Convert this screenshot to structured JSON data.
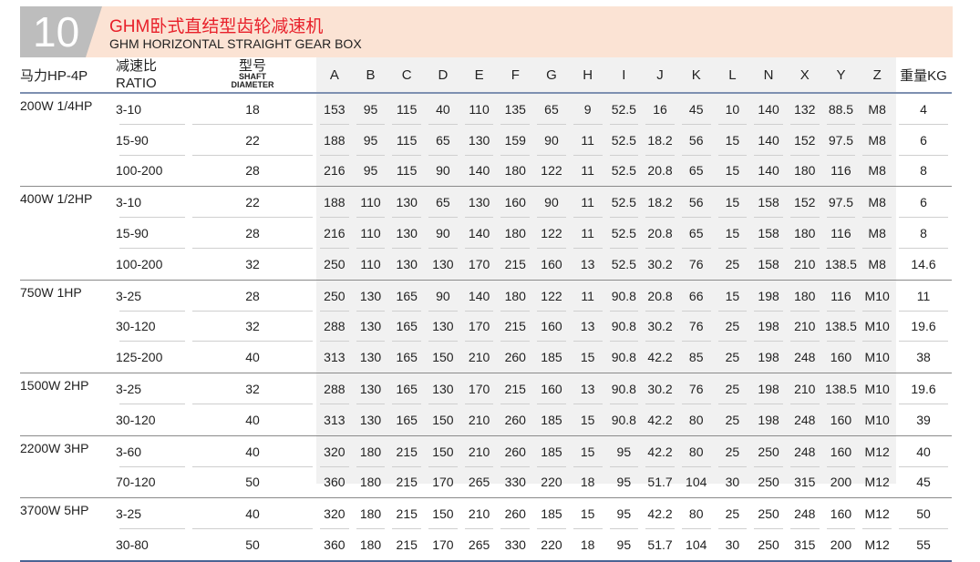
{
  "header": {
    "number": "10",
    "title_cn": "GHM卧式直结型齿轮减速机",
    "title_en": "GHM HORIZONTAL STRAIGHT GEAR BOX"
  },
  "columns": {
    "hp": "马力HP-4P",
    "ratio_cn": "减速比",
    "ratio_en": "RATIO",
    "model_cn": "型号",
    "shaft1": "SHAFT",
    "shaft2": "DIAMETER",
    "dims": [
      "A",
      "B",
      "C",
      "D",
      "E",
      "F",
      "G",
      "H",
      "I",
      "J",
      "K",
      "L",
      "N",
      "X",
      "Y",
      "Z"
    ],
    "weight": "重量KG"
  },
  "groups": [
    {
      "hp": "200W 1/4HP",
      "rows": [
        {
          "ratio": "3-10",
          "shaft": "18",
          "dims": [
            "153",
            "95",
            "115",
            "40",
            "110",
            "135",
            "65",
            "9",
            "52.5",
            "16",
            "45",
            "10",
            "140",
            "132",
            "88.5",
            "M8"
          ],
          "kg": "4"
        },
        {
          "ratio": "15-90",
          "shaft": "22",
          "dims": [
            "188",
            "95",
            "115",
            "65",
            "130",
            "159",
            "90",
            "11",
            "52.5",
            "18.2",
            "56",
            "15",
            "140",
            "152",
            "97.5",
            "M8"
          ],
          "kg": "6"
        },
        {
          "ratio": "100-200",
          "shaft": "28",
          "dims": [
            "216",
            "95",
            "115",
            "90",
            "140",
            "180",
            "122",
            "11",
            "52.5",
            "20.8",
            "65",
            "15",
            "140",
            "180",
            "116",
            "M8"
          ],
          "kg": "8"
        }
      ]
    },
    {
      "hp": "400W 1/2HP",
      "rows": [
        {
          "ratio": "3-10",
          "shaft": "22",
          "dims": [
            "188",
            "110",
            "130",
            "65",
            "130",
            "160",
            "90",
            "11",
            "52.5",
            "18.2",
            "56",
            "15",
            "158",
            "152",
            "97.5",
            "M8"
          ],
          "kg": "6"
        },
        {
          "ratio": "15-90",
          "shaft": "28",
          "dims": [
            "216",
            "110",
            "130",
            "90",
            "140",
            "180",
            "122",
            "11",
            "52.5",
            "20.8",
            "65",
            "15",
            "158",
            "180",
            "116",
            "M8"
          ],
          "kg": "8"
        },
        {
          "ratio": "100-200",
          "shaft": "32",
          "dims": [
            "250",
            "110",
            "130",
            "130",
            "170",
            "215",
            "160",
            "13",
            "52.5",
            "30.2",
            "76",
            "25",
            "158",
            "210",
            "138.5",
            "M8"
          ],
          "kg": "14.6"
        }
      ]
    },
    {
      "hp": "750W 1HP",
      "rows": [
        {
          "ratio": "3-25",
          "shaft": "28",
          "dims": [
            "250",
            "130",
            "165",
            "90",
            "140",
            "180",
            "122",
            "11",
            "90.8",
            "20.8",
            "66",
            "15",
            "198",
            "180",
            "116",
            "M10"
          ],
          "kg": "11"
        },
        {
          "ratio": "30-120",
          "shaft": "32",
          "dims": [
            "288",
            "130",
            "165",
            "130",
            "170",
            "215",
            "160",
            "13",
            "90.8",
            "30.2",
            "76",
            "25",
            "198",
            "210",
            "138.5",
            "M10"
          ],
          "kg": "19.6"
        },
        {
          "ratio": "125-200",
          "shaft": "40",
          "dims": [
            "313",
            "130",
            "165",
            "150",
            "210",
            "260",
            "185",
            "15",
            "90.8",
            "42.2",
            "85",
            "25",
            "198",
            "248",
            "160",
            "M10"
          ],
          "kg": "38"
        }
      ]
    },
    {
      "hp": "1500W 2HP",
      "rows": [
        {
          "ratio": "3-25",
          "shaft": "32",
          "dims": [
            "288",
            "130",
            "165",
            "130",
            "170",
            "215",
            "160",
            "13",
            "90.8",
            "30.2",
            "76",
            "25",
            "198",
            "210",
            "138.5",
            "M10"
          ],
          "kg": "19.6"
        },
        {
          "ratio": "30-120",
          "shaft": "40",
          "dims": [
            "313",
            "130",
            "165",
            "150",
            "210",
            "260",
            "185",
            "15",
            "90.8",
            "42.2",
            "80",
            "25",
            "198",
            "248",
            "160",
            "M10"
          ],
          "kg": "39"
        }
      ]
    },
    {
      "hp": "2200W 3HP",
      "rows": [
        {
          "ratio": "3-60",
          "shaft": "40",
          "dims": [
            "320",
            "180",
            "215",
            "150",
            "210",
            "260",
            "185",
            "15",
            "95",
            "42.2",
            "80",
            "25",
            "250",
            "248",
            "160",
            "M12"
          ],
          "kg": "40"
        },
        {
          "ratio": "70-120",
          "shaft": "50",
          "dims": [
            "360",
            "180",
            "215",
            "170",
            "265",
            "330",
            "220",
            "18",
            "95",
            "51.7",
            "104",
            "30",
            "250",
            "315",
            "200",
            "M12"
          ],
          "kg": "45"
        }
      ]
    },
    {
      "hp": "3700W 5HP",
      "rows": [
        {
          "ratio": "3-25",
          "shaft": "40",
          "dims": [
            "320",
            "180",
            "215",
            "150",
            "210",
            "260",
            "185",
            "15",
            "95",
            "42.2",
            "80",
            "25",
            "250",
            "248",
            "160",
            "M12"
          ],
          "kg": "50"
        },
        {
          "ratio": "30-80",
          "shaft": "50",
          "dims": [
            "360",
            "180",
            "215",
            "170",
            "265",
            "330",
            "220",
            "18",
            "95",
            "51.7",
            "104",
            "30",
            "250",
            "315",
            "200",
            "M12"
          ],
          "kg": "55"
        }
      ]
    }
  ]
}
